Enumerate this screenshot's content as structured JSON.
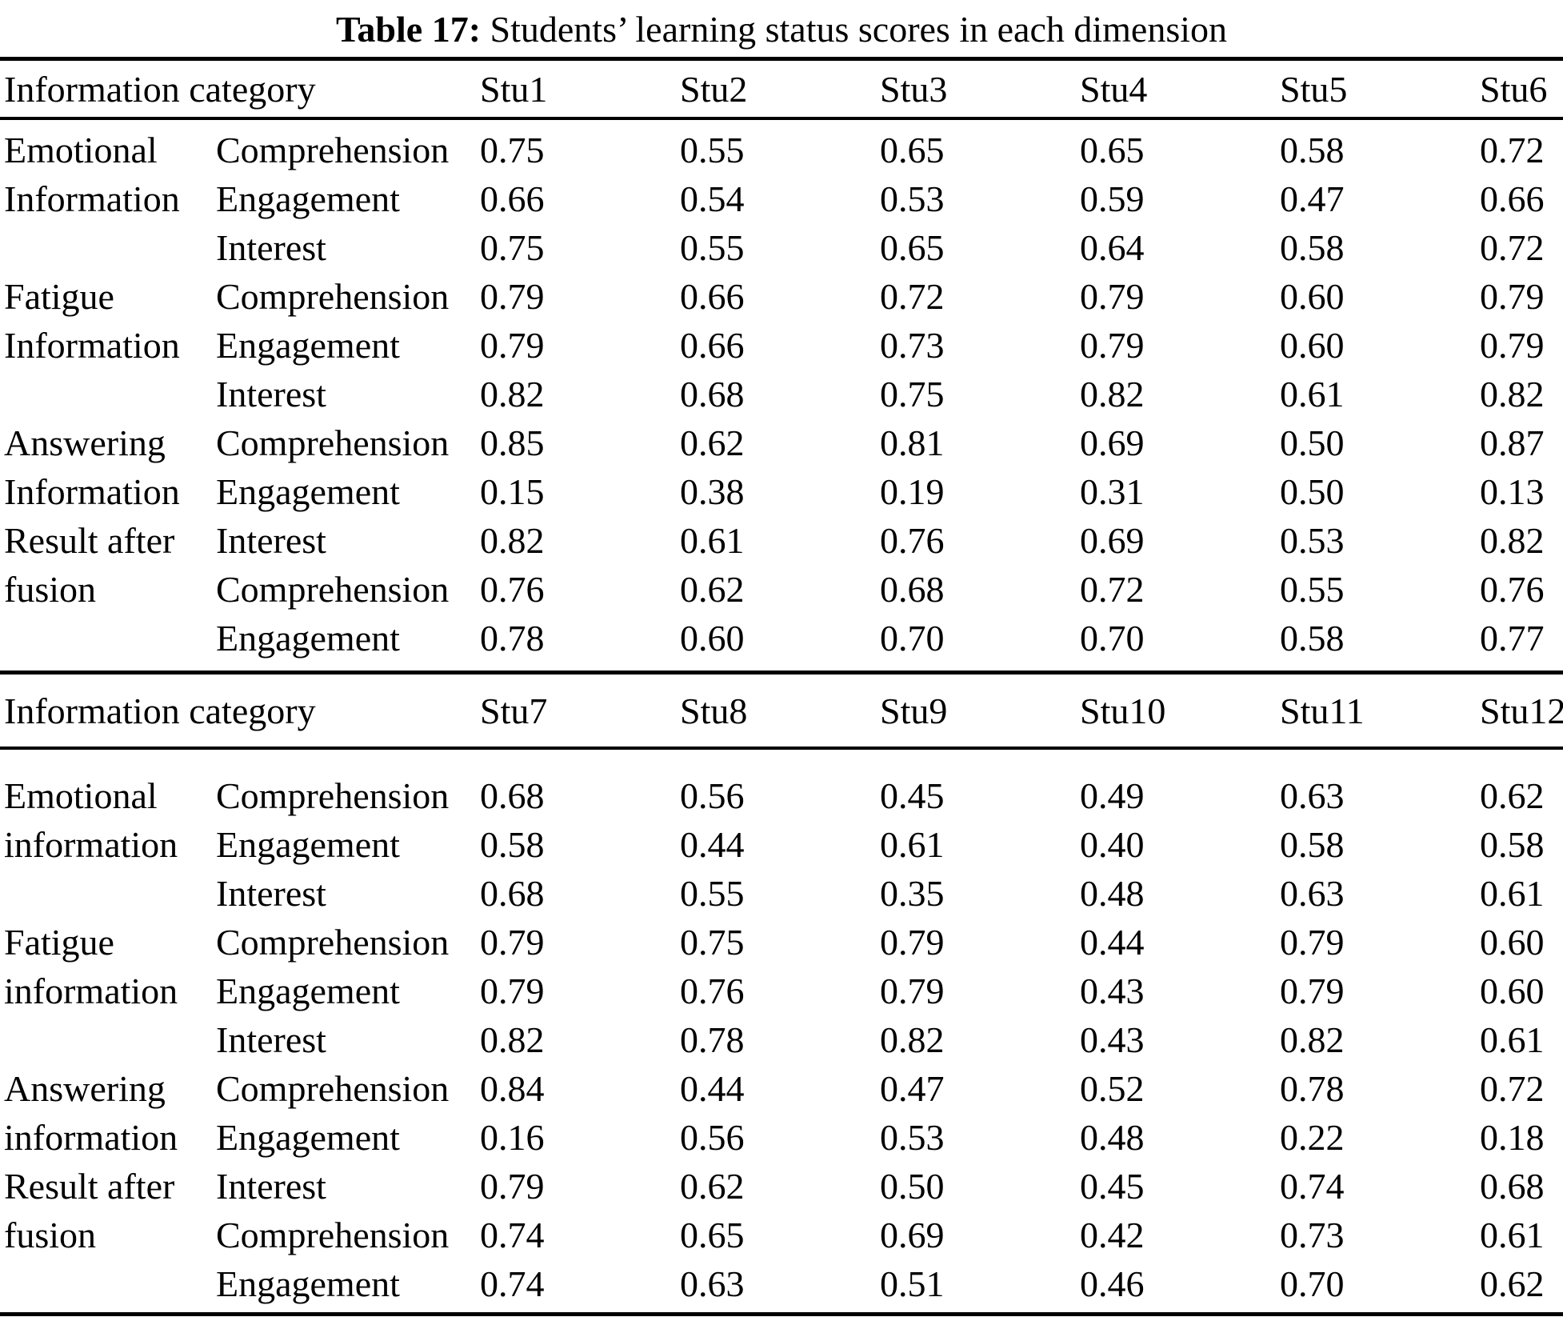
{
  "caption": {
    "label": "Table 17:",
    "text": " Students’ learning status scores in each dimension"
  },
  "colors": {
    "background": "#ffffff",
    "text": "#000000",
    "rule": "#000000"
  },
  "sections": [
    {
      "header": {
        "category_label": "Information category",
        "columns": [
          "Stu1",
          "Stu2",
          "Stu3",
          "Stu4",
          "Stu5",
          "Stu6"
        ]
      },
      "rows": [
        {
          "group": "Emotional",
          "metric": "Comprehension",
          "values": [
            "0.75",
            "0.55",
            "0.65",
            "0.65",
            "0.58",
            "0.72"
          ]
        },
        {
          "group": "Information",
          "metric": "Engagement",
          "values": [
            "0.66",
            "0.54",
            "0.53",
            "0.59",
            "0.47",
            "0.66"
          ]
        },
        {
          "group": "",
          "metric": "Interest",
          "values": [
            "0.75",
            "0.55",
            "0.65",
            "0.64",
            "0.58",
            "0.72"
          ]
        },
        {
          "group": "Fatigue",
          "metric": "Comprehension",
          "values": [
            "0.79",
            "0.66",
            "0.72",
            "0.79",
            "0.60",
            "0.79"
          ]
        },
        {
          "group": "Information",
          "metric": "Engagement",
          "values": [
            "0.79",
            "0.66",
            "0.73",
            "0.79",
            "0.60",
            "0.79"
          ]
        },
        {
          "group": "",
          "metric": "Interest",
          "values": [
            "0.82",
            "0.68",
            "0.75",
            "0.82",
            "0.61",
            "0.82"
          ]
        },
        {
          "group": "Answering",
          "metric": "Comprehension",
          "values": [
            "0.85",
            "0.62",
            "0.81",
            "0.69",
            "0.50",
            "0.87"
          ]
        },
        {
          "group": "Information",
          "metric": "Engagement",
          "values": [
            "0.15",
            "0.38",
            "0.19",
            "0.31",
            "0.50",
            "0.13"
          ]
        },
        {
          "group": "Result after",
          "metric": "Interest",
          "values": [
            "0.82",
            "0.61",
            "0.76",
            "0.69",
            "0.53",
            "0.82"
          ]
        },
        {
          "group": "fusion",
          "metric": "Comprehension",
          "values": [
            "0.76",
            "0.62",
            "0.68",
            "0.72",
            "0.55",
            "0.76"
          ]
        },
        {
          "group": "",
          "metric": "Engagement",
          "values": [
            "0.78",
            "0.60",
            "0.70",
            "0.70",
            "0.58",
            "0.77"
          ]
        }
      ]
    },
    {
      "header": {
        "category_label": "Information category",
        "columns": [
          "Stu7",
          "Stu8",
          "Stu9",
          "Stu10",
          "Stu11",
          "Stu12"
        ]
      },
      "rows": [
        {
          "group": "Emotional",
          "metric": "Comprehension",
          "values": [
            "0.68",
            "0.56",
            "0.45",
            "0.49",
            "0.63",
            "0.62"
          ]
        },
        {
          "group": "information",
          "metric": "Engagement",
          "values": [
            "0.58",
            "0.44",
            "0.61",
            "0.40",
            "0.58",
            "0.58"
          ]
        },
        {
          "group": "",
          "metric": "Interest",
          "values": [
            "0.68",
            "0.55",
            "0.35",
            "0.48",
            "0.63",
            "0.61"
          ]
        },
        {
          "group": "Fatigue",
          "metric": "Comprehension",
          "values": [
            "0.79",
            "0.75",
            "0.79",
            "0.44",
            "0.79",
            "0.60"
          ]
        },
        {
          "group": "information",
          "metric": "Engagement",
          "values": [
            "0.79",
            "0.76",
            "0.79",
            "0.43",
            "0.79",
            "0.60"
          ]
        },
        {
          "group": "",
          "metric": "Interest",
          "values": [
            "0.82",
            "0.78",
            "0.82",
            "0.43",
            "0.82",
            "0.61"
          ]
        },
        {
          "group": "Answering",
          "metric": "Comprehension",
          "values": [
            "0.84",
            "0.44",
            "0.47",
            "0.52",
            "0.78",
            "0.72"
          ]
        },
        {
          "group": "information",
          "metric": "Engagement",
          "values": [
            "0.16",
            "0.56",
            "0.53",
            "0.48",
            "0.22",
            "0.18"
          ]
        },
        {
          "group": "Result after",
          "metric": "Interest",
          "values": [
            "0.79",
            "0.62",
            "0.50",
            "0.45",
            "0.74",
            "0.68"
          ]
        },
        {
          "group": "fusion",
          "metric": "Comprehension",
          "values": [
            "0.74",
            "0.65",
            "0.69",
            "0.42",
            "0.73",
            "0.61"
          ]
        },
        {
          "group": "",
          "metric": "Engagement",
          "values": [
            "0.74",
            "0.63",
            "0.51",
            "0.46",
            "0.70",
            "0.62"
          ]
        }
      ]
    }
  ]
}
